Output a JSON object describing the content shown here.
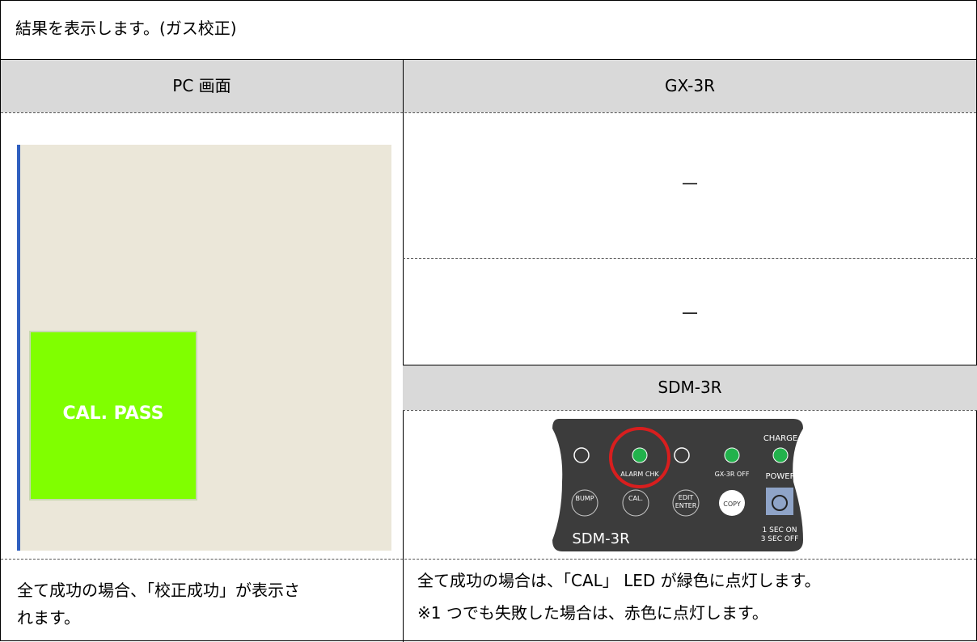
{
  "header": {
    "title": "結果を表示します。(ガス校正)"
  },
  "columns": [
    "PC 画面",
    "GX-3R"
  ],
  "pc_screen": {
    "status": "CAL. PASS"
  },
  "gx3r": {
    "rows": [
      "—",
      "—"
    ]
  },
  "sdm3r": {
    "title": "SDM-3R",
    "device": {
      "charge": "CHARGE",
      "alarm": "ALARM CHK",
      "gx_off": "GX-3R OFF",
      "power": "POWER",
      "bump": "BUMP",
      "cal": "CAL.",
      "edit": "EDIT",
      "enter": "ENTER",
      "copy": "COPY",
      "name": "SDM-3R",
      "sec_on": "1 SEC ON",
      "sec_off": "3 SEC OFF"
    }
  },
  "notes": {
    "left": [
      "全て成功の場合、「校正成功」が表示さ",
      "れます。"
    ],
    "right": [
      "全て成功の場合は、「CAL」 LED が緑色に点灯します。",
      "※1 つでも失敗した場合は、赤色に点灯します。"
    ]
  }
}
